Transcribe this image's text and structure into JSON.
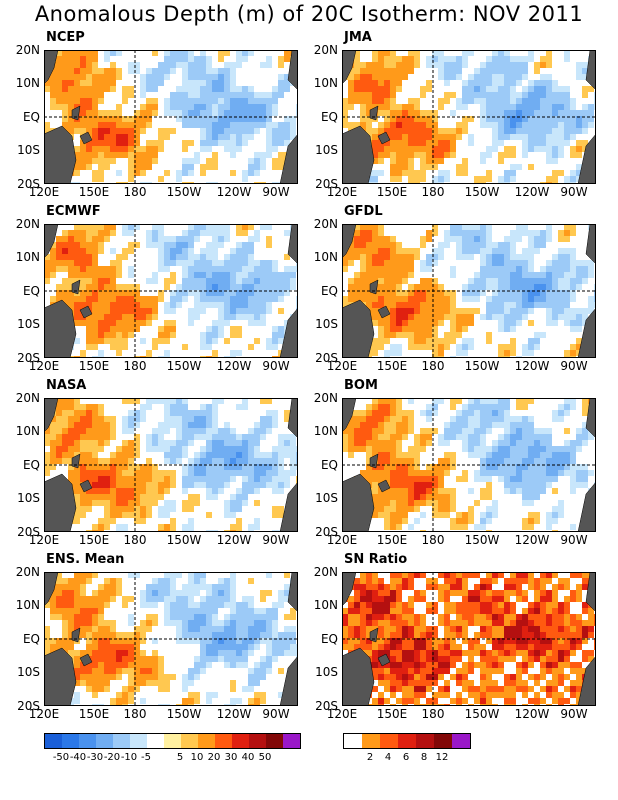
{
  "title": "Anomalous Depth (m) of 20C Isotherm: NOV 2011",
  "lat_ticks": [
    "20N",
    "10N",
    "EQ",
    "10S",
    "20S"
  ],
  "lon_ticks": [
    "120E",
    "150E",
    "180",
    "150W",
    "120W",
    "90W"
  ],
  "panels": [
    {
      "label": "NCEP",
      "scale": "anomaly"
    },
    {
      "label": "JMA",
      "scale": "anomaly"
    },
    {
      "label": "ECMWF",
      "scale": "anomaly"
    },
    {
      "label": "GFDL",
      "scale": "anomaly"
    },
    {
      "label": "NASA",
      "scale": "anomaly"
    },
    {
      "label": "BOM",
      "scale": "anomaly"
    },
    {
      "label": "ENS. Mean",
      "scale": "anomaly"
    },
    {
      "label": "SN Ratio",
      "scale": "sn"
    }
  ],
  "anomaly_colorbar": {
    "labels": [
      "-50",
      "-40",
      "-30",
      "-20",
      "-10",
      "-5",
      "5",
      "10",
      "20",
      "30",
      "40",
      "50"
    ],
    "colors": [
      "#1a5fd8",
      "#2b78e8",
      "#4a92ee",
      "#70adf2",
      "#9ccaf7",
      "#c8e6fb",
      "#ffffff",
      "#fff0a0",
      "#ffc850",
      "#ff9a1a",
      "#ff5a10",
      "#e02010",
      "#b41010",
      "#820808",
      "#9a18c8"
    ]
  },
  "sn_colorbar": {
    "labels": [
      "2",
      "4",
      "6",
      "8",
      "12"
    ],
    "colors": [
      "#ffffff",
      "#ff9a1a",
      "#ff5a10",
      "#e02010",
      "#b41010",
      "#820808",
      "#9a18c8"
    ]
  },
  "land_color": "#555555"
}
